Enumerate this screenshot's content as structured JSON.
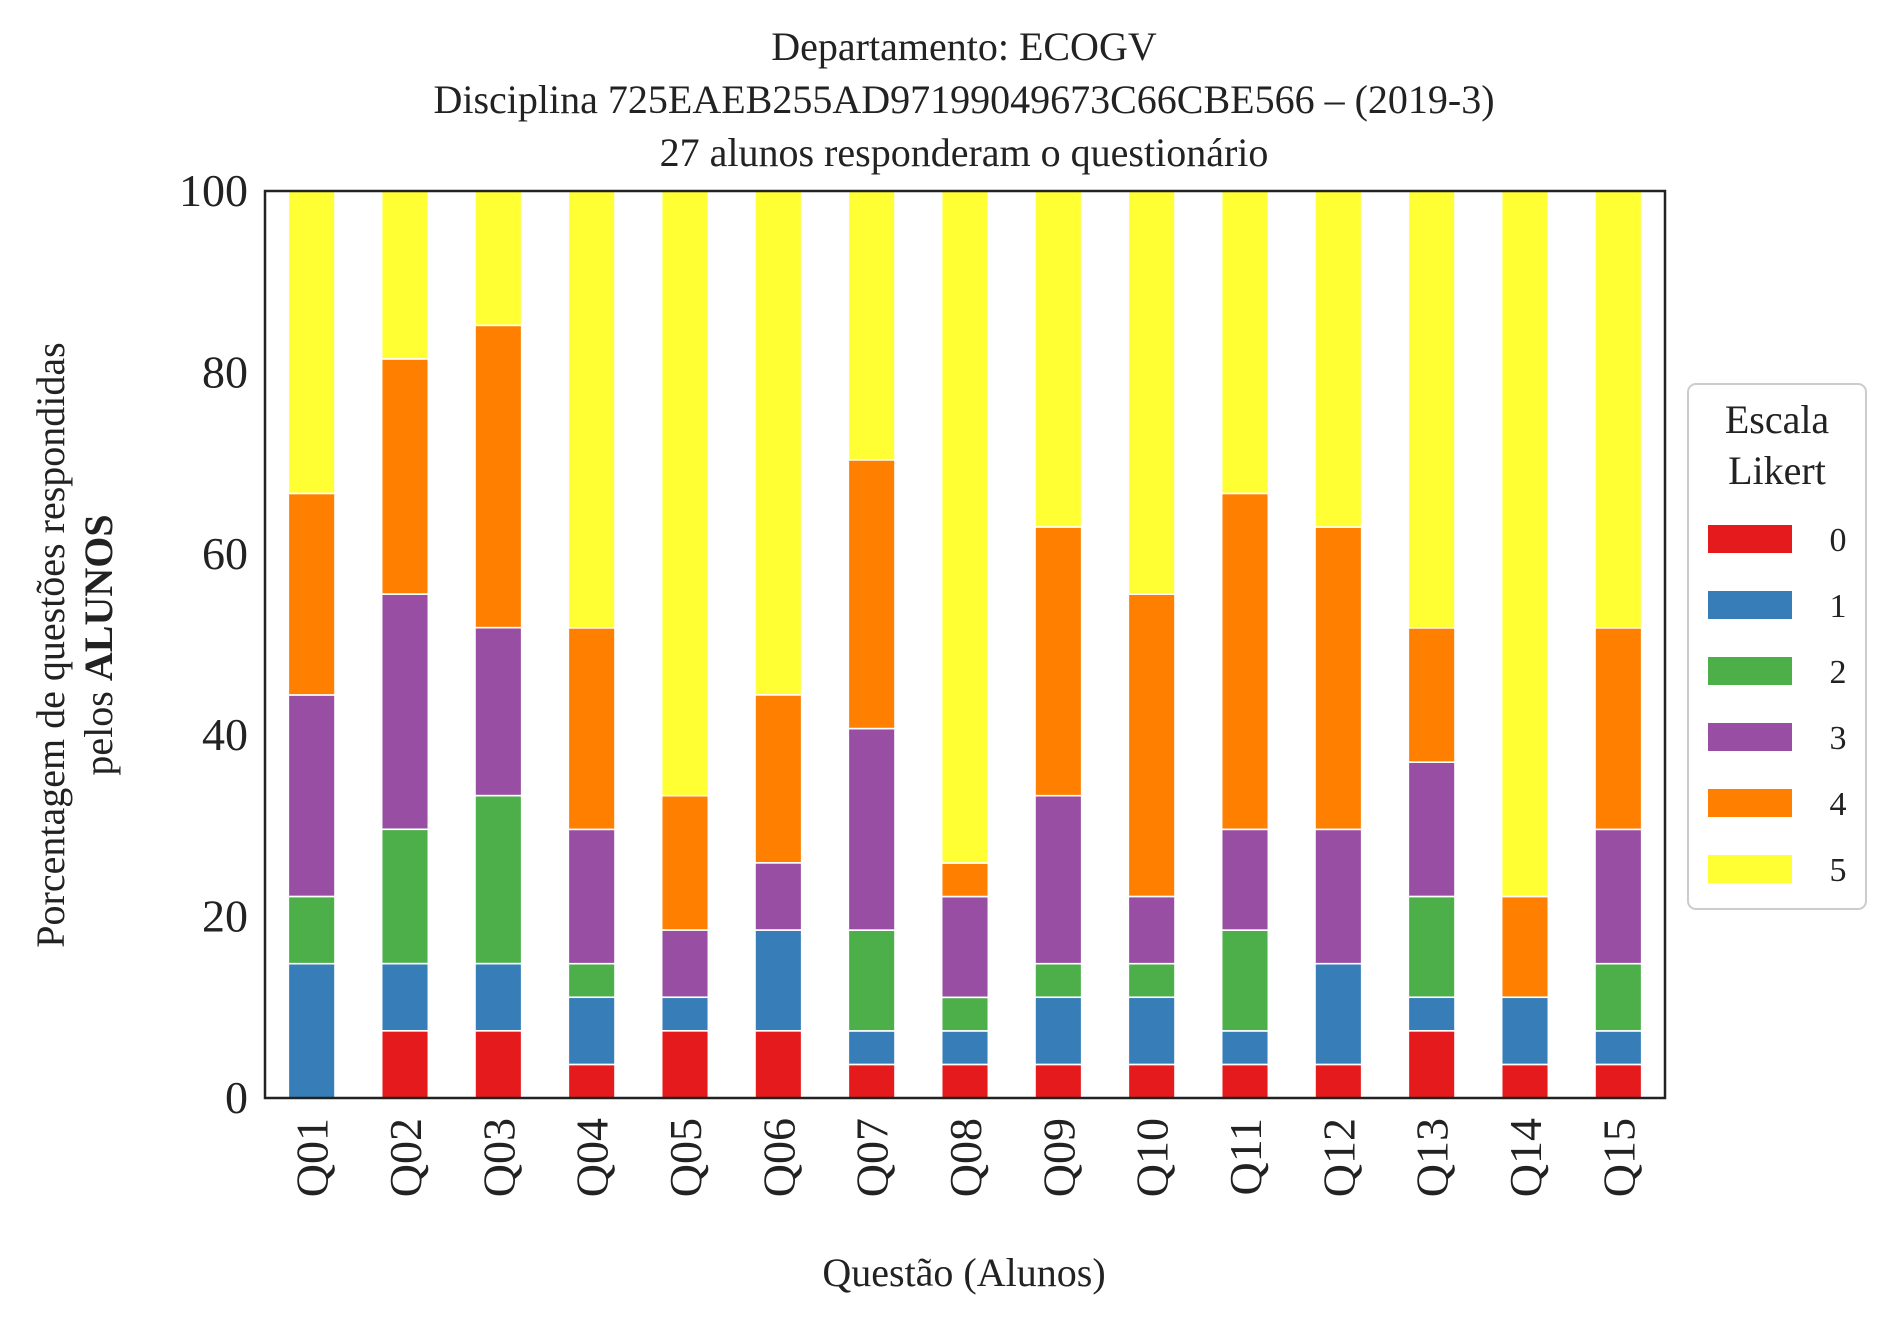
{
  "chart_data": {
    "type": "bar",
    "stacked": true,
    "title": [
      "Departamento: ECOGV",
      "Disciplina 725EAEB255AD97199049673C66CBE566 – (2019-3)",
      "27 alunos responderam o questionário"
    ],
    "xlabel": "Questão (Alunos)",
    "ylabel_line1": "Porcentagem de questões respondidas",
    "ylabel_line2_prefix": "pelos ",
    "ylabel_line2_bold": "ALUNOS",
    "ylim": [
      0,
      100
    ],
    "yticks": [
      0,
      20,
      40,
      60,
      80,
      100
    ],
    "grid": false,
    "legend": {
      "title_line1": "Escala",
      "title_line2": "Likert",
      "placement": "right"
    },
    "categories": [
      "Q01",
      "Q02",
      "Q03",
      "Q04",
      "Q05",
      "Q06",
      "Q07",
      "Q08",
      "Q09",
      "Q10",
      "Q11",
      "Q12",
      "Q13",
      "Q14",
      "Q15"
    ],
    "series": [
      {
        "name": "0",
        "color": "#e41a1c",
        "values": [
          0,
          7.41,
          7.41,
          3.7,
          7.41,
          7.41,
          3.7,
          3.7,
          3.7,
          3.7,
          3.7,
          3.7,
          7.41,
          3.7,
          3.7
        ]
      },
      {
        "name": "1",
        "color": "#377eb8",
        "values": [
          14.81,
          7.41,
          7.41,
          7.41,
          3.7,
          11.11,
          3.7,
          3.7,
          7.41,
          7.41,
          3.7,
          11.11,
          3.7,
          7.41,
          3.7
        ]
      },
      {
        "name": "2",
        "color": "#4daf4a",
        "values": [
          7.41,
          14.81,
          18.52,
          3.7,
          0,
          0,
          11.11,
          3.7,
          3.7,
          3.7,
          11.11,
          0,
          11.11,
          0,
          7.41
        ]
      },
      {
        "name": "3",
        "color": "#984ea3",
        "values": [
          22.22,
          25.93,
          18.52,
          14.81,
          7.41,
          7.41,
          22.22,
          11.11,
          18.52,
          7.41,
          11.11,
          14.81,
          14.81,
          0,
          14.81
        ]
      },
      {
        "name": "4",
        "color": "#ff7f00",
        "values": [
          22.22,
          25.93,
          33.33,
          22.22,
          14.81,
          18.52,
          29.63,
          3.7,
          29.63,
          33.33,
          37.04,
          33.33,
          14.81,
          11.11,
          22.22
        ]
      },
      {
        "name": "5",
        "color": "#ffff33",
        "values": [
          33.33,
          18.52,
          14.81,
          48.15,
          66.67,
          55.56,
          29.63,
          74.07,
          37.04,
          44.44,
          33.33,
          37.04,
          48.15,
          77.78,
          48.15
        ]
      }
    ]
  }
}
